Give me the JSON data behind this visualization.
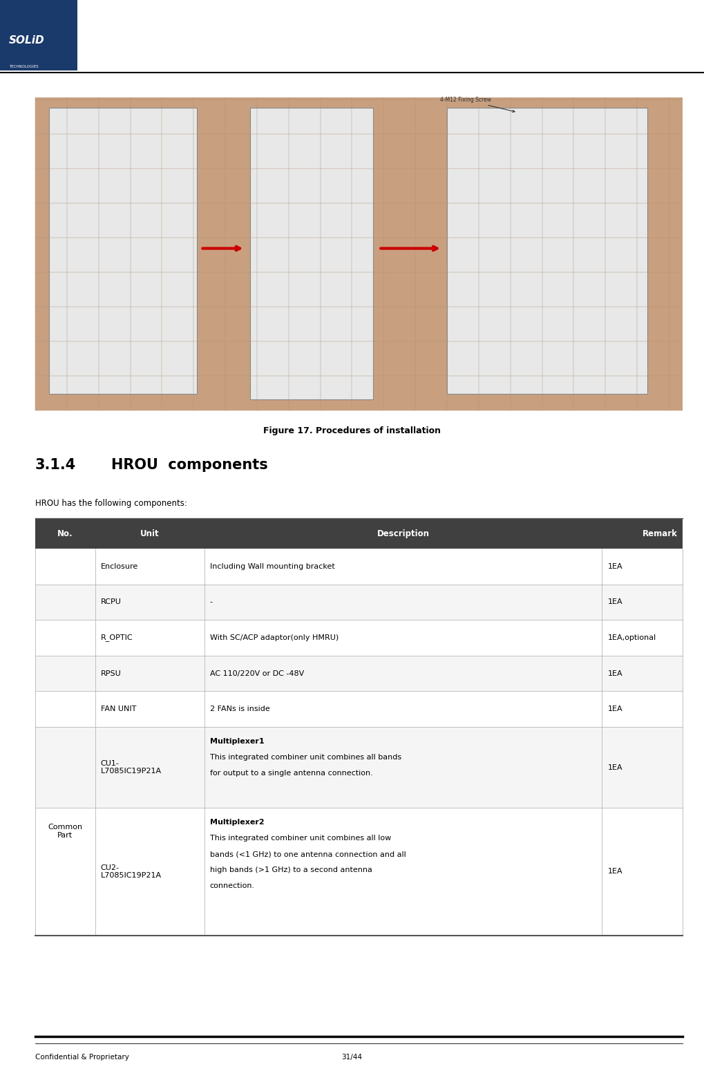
{
  "title_text": "Figure 17. Procedures of installation",
  "section_number": "3.1.4",
  "section_title": "HROU  components",
  "intro_text": "HROU has the following components:",
  "footer_left": "Confidential & Proprietary",
  "footer_right": "31/44",
  "table_header_bg": "#404040",
  "table_header_cols": [
    "No.",
    "Unit",
    "Description",
    "Remark"
  ],
  "table_rows": [
    {
      "no": "",
      "unit": "Enclosure",
      "description": "Including Wall mounting bracket",
      "remark": "1EA",
      "bold_desc": false
    },
    {
      "no": "",
      "unit": "RCPU",
      "description": "-",
      "remark": "1EA",
      "bold_desc": false
    },
    {
      "no": "",
      "unit": "R_OPTIC",
      "description": "With SC/ACP adaptor(only HMRU)",
      "remark": "1EA,optional",
      "bold_desc": false
    },
    {
      "no": "",
      "unit": "RPSU",
      "description": "AC 110/220V or DC -48V",
      "remark": "1EA",
      "bold_desc": false
    },
    {
      "no": "",
      "unit": "FAN UNIT",
      "description": "2 FANs is inside",
      "remark": "1EA",
      "bold_desc": false
    },
    {
      "no": "Common\nPart",
      "unit": "CU1-\nL7085IC19P21A",
      "description_bold": "Multiplexer1",
      "description_rest": "This integrated combiner unit combines all bands for output to a single antenna connection.",
      "remark": "1EA",
      "bold_desc": true
    },
    {
      "no": "",
      "unit": "CU2-\nL7085IC19P21A",
      "description_bold": "Multiplexer2",
      "description_rest": "This integrated combiner unit combines all low bands (<1 GHz) to one antenna connection and all high bands (>1 GHz) to a second antenna connection.",
      "remark": "1EA",
      "bold_desc": true
    }
  ],
  "logo_color": "#1a3a6b",
  "bg_color": "#ffffff",
  "arrow_color": "#cc0000"
}
